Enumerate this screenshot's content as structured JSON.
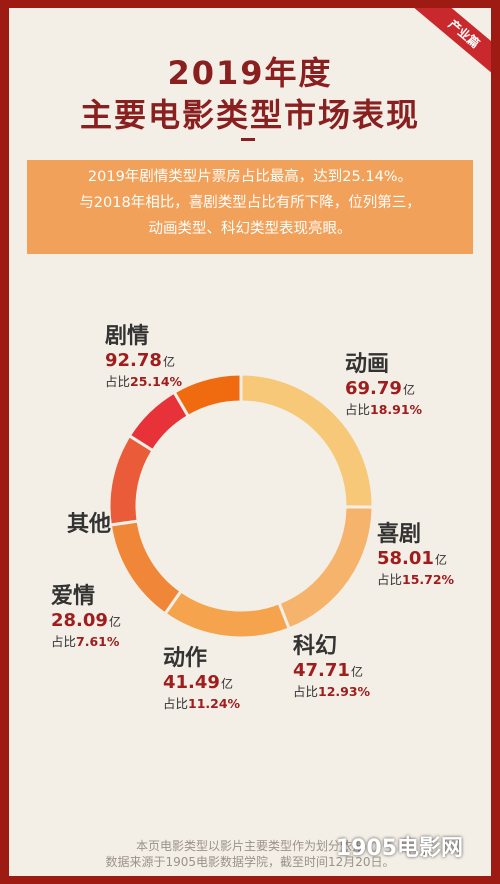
{
  "badge": "产业篇",
  "title_line1": "2019年度",
  "title_line2": "主要电影类型市场表现",
  "summary": [
    "2019年剧情类型片票房占比最高，达到25.14%。",
    "与2018年相比，喜剧类型占比有所下降，位列第三，",
    "动画类型、科幻类型表现亮眼。"
  ],
  "footer": [
    "本页电影类型以影片主要类型作为划分依据",
    "数据来源于1905电影数据学院，截至时间12月20日。"
  ],
  "watermark": "1905电影网",
  "chart_data": {
    "type": "pie",
    "style": "donut",
    "unit": "亿",
    "pct_prefix": "占比",
    "segments": [
      {
        "name": "剧情",
        "value": 92.78,
        "value_text": "92.78",
        "share": 25.14,
        "share_text": "25.14%",
        "color": "#f7c878"
      },
      {
        "name": "动画",
        "value": 69.79,
        "value_text": "69.79",
        "share": 18.91,
        "share_text": "18.91%",
        "color": "#f6b36b"
      },
      {
        "name": "喜剧",
        "value": 58.01,
        "value_text": "58.01",
        "share": 15.72,
        "share_text": "15.72%",
        "color": "#f5a44d"
      },
      {
        "name": "科幻",
        "value": 47.71,
        "value_text": "47.71",
        "share": 12.93,
        "share_text": "12.93%",
        "color": "#f08638"
      },
      {
        "name": "动作",
        "value": 41.49,
        "value_text": "41.49",
        "share": 11.24,
        "share_text": "11.24%",
        "color": "#ea5b3a"
      },
      {
        "name": "爱情",
        "value": 28.09,
        "value_text": "28.09",
        "share": 7.61,
        "share_text": "7.61%",
        "color": "#e8323a"
      },
      {
        "name": "其他",
        "value": null,
        "value_text": "",
        "share": 8.45,
        "share_text": "",
        "color": "#f06a10"
      }
    ]
  }
}
